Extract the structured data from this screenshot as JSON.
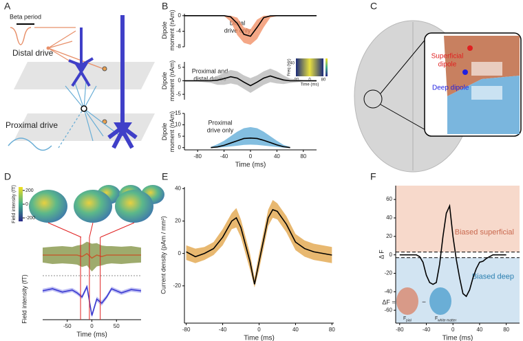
{
  "panel_labels": [
    "A",
    "B",
    "C",
    "D",
    "E",
    "F"
  ],
  "diagram_a": {
    "beta_period": "Beta period",
    "distal": "Distal drive",
    "proximal": "Proximal drive"
  },
  "diagram_c": {
    "superficial": [
      "Superficial",
      "dipole"
    ],
    "deep": "Deep dipole"
  },
  "colorbar_d": {
    "label": "Field intensity (fT)",
    "ticks": [
      200,
      0,
      -200
    ],
    "lim": [
      -250,
      250
    ]
  },
  "inset_b": {
    "ylabel": "Freq (Hz)",
    "xlabel": "Time (ms)",
    "xticks": [
      -80,
      0,
      80
    ],
    "yticks": [
      40
    ]
  },
  "formula_f": {
    "lhs": "ΔF =",
    "a": "F",
    "a_sub": "pial",
    "minus": "−",
    "b": "F",
    "b_sub": "white matter"
  },
  "chart_data": [
    {
      "type": "line",
      "xlim": [
        -100,
        100
      ],
      "ylim": [
        -8,
        0.5
      ],
      "yticks": [
        0,
        -4,
        -8
      ],
      "ylabel": [
        "Dipole",
        "moment (nAm)"
      ],
      "annotation": [
        "Distal",
        "drive only"
      ],
      "x": [
        -100,
        -80,
        -60,
        -40,
        -30,
        -20,
        -10,
        0,
        10,
        20,
        30,
        40,
        60,
        80,
        100
      ],
      "values": [
        0,
        0,
        0,
        0,
        -0.3,
        -2,
        -4.8,
        -5.3,
        -3,
        -0.5,
        -0.05,
        0,
        0,
        0,
        0
      ],
      "lower": [
        0,
        0,
        0,
        -0.1,
        -1.5,
        -5,
        -7,
        -7.5,
        -6,
        -3,
        -0.5,
        -0.1,
        0,
        0,
        0
      ],
      "upper": [
        0,
        0,
        0,
        0,
        0,
        -0.5,
        -3,
        -3.5,
        -1,
        0,
        0,
        0,
        0,
        0,
        0
      ],
      "color": "#000000",
      "band_color": "#f08a5d"
    },
    {
      "type": "line",
      "xlim": [
        -100,
        100
      ],
      "ylim": [
        -7,
        7
      ],
      "yticks": [
        5,
        0,
        -5
      ],
      "ylabel": [
        "Dipole",
        "moment (nAm)"
      ],
      "annotation": [
        "Proximal and",
        "distal drives"
      ],
      "x": [
        -100,
        -80,
        -60,
        -50,
        -40,
        -30,
        -20,
        -10,
        0,
        10,
        20,
        30,
        40,
        50,
        60,
        80,
        100
      ],
      "values": [
        0,
        0,
        0,
        0.2,
        0.8,
        1.5,
        1,
        -0.5,
        -1.8,
        -0.5,
        1,
        1.8,
        1,
        0.3,
        0,
        0,
        0
      ],
      "lower": [
        -0.3,
        -0.3,
        -0.8,
        -1.5,
        -1.5,
        -1,
        -1.5,
        -3,
        -4.5,
        -3,
        -1.5,
        -0.5,
        -1,
        -1.2,
        -0.8,
        -0.3,
        -0.3
      ],
      "upper": [
        0.3,
        0.3,
        0.8,
        1.8,
        3,
        4,
        3.5,
        2,
        1,
        2,
        3.5,
        4.5,
        3.5,
        2,
        0.8,
        0.3,
        0.3
      ],
      "color": "#000000",
      "band_color": "#b5b5b5"
    },
    {
      "type": "line",
      "xlim": [
        -100,
        100
      ],
      "ylim": [
        -1,
        15
      ],
      "yticks": [
        0,
        5,
        10,
        15
      ],
      "xticks": [
        -80,
        -40,
        0,
        40,
        80
      ],
      "xlabel": "Time (ms)",
      "ylabel": [
        "Dipole",
        "moment (nAm)"
      ],
      "annotation": [
        "Proximal",
        "drive only"
      ],
      "x": [
        -60,
        -50,
        -40,
        -30,
        -20,
        -10,
        0,
        10,
        20,
        30,
        40,
        50,
        60
      ],
      "values": [
        0,
        0.3,
        1,
        2,
        3,
        4,
        4.2,
        4,
        3.2,
        2.2,
        1.2,
        0.4,
        0
      ],
      "lower": [
        0,
        0,
        0.2,
        0.5,
        0.8,
        1.2,
        1.3,
        1.2,
        0.9,
        0.6,
        0.3,
        0,
        0
      ],
      "upper": [
        0.3,
        1.5,
        3,
        5,
        7,
        8.5,
        9,
        8.5,
        7,
        5,
        3,
        1.2,
        0.3
      ],
      "color": "#000000",
      "band_color": "#5aa8d6"
    },
    {
      "type": "line",
      "xlim": [
        -100,
        100
      ],
      "ylim": [
        -60,
        60
      ],
      "x": [
        -100,
        -80,
        -60,
        -40,
        -30,
        -20,
        -10,
        0,
        10,
        20,
        30,
        40,
        60,
        80,
        100
      ],
      "values": [
        0,
        0,
        0,
        0,
        0,
        -5,
        5,
        -10,
        0,
        -5,
        0,
        0,
        0,
        0,
        0
      ],
      "lower": [
        -25,
        -30,
        -28,
        -30,
        -32,
        -40,
        -35,
        -55,
        -38,
        -35,
        -30,
        -28,
        -30,
        -27,
        -25
      ],
      "upper": [
        25,
        28,
        30,
        27,
        32,
        35,
        45,
        38,
        40,
        32,
        30,
        30,
        28,
        30,
        25
      ],
      "color": "#c06030",
      "band_color": "#7d8f3c"
    },
    {
      "type": "line",
      "xlim": [
        -100,
        100
      ],
      "ylim": [
        -70,
        30
      ],
      "xticks": [
        -50,
        0,
        50
      ],
      "xlabel": "Time (ms)",
      "ylabel": [
        "Field intensity (fT)"
      ],
      "x": [
        -100,
        -80,
        -60,
        -40,
        -30,
        -20,
        -10,
        0,
        10,
        20,
        30,
        40,
        60,
        80,
        100
      ],
      "values": [
        0,
        5,
        -3,
        2,
        -5,
        -15,
        10,
        -60,
        -20,
        -30,
        -15,
        5,
        -5,
        3,
        0
      ],
      "lower": [
        -5,
        0,
        -8,
        -3,
        -10,
        -20,
        5,
        -66,
        -26,
        -36,
        -20,
        0,
        -10,
        -2,
        -5
      ],
      "upper": [
        5,
        10,
        2,
        7,
        0,
        -10,
        15,
        -54,
        -14,
        -24,
        -10,
        10,
        0,
        8,
        5
      ],
      "color": "#3a3ad0",
      "band_color": "#a8a8f0",
      "markers": [
        -23,
        -5,
        17
      ]
    },
    {
      "type": "line",
      "xlim": [
        -82,
        82
      ],
      "ylim": [
        -43,
        41
      ],
      "yticks": [
        -20,
        0,
        20,
        40
      ],
      "xticks": [
        -80,
        -40,
        0,
        40,
        80
      ],
      "xlabel": "Time (ms)",
      "ylabel": [
        "Current density (pAm / mm²)"
      ],
      "x": [
        -80,
        -70,
        -60,
        -50,
        -40,
        -30,
        -25,
        -20,
        -10,
        -5,
        0,
        10,
        15,
        20,
        30,
        40,
        50,
        60,
        70,
        80
      ],
      "values": [
        1,
        -2,
        0,
        3,
        10,
        20,
        22,
        16,
        -5,
        -19,
        -5,
        22,
        27,
        26,
        18,
        7,
        3,
        1,
        0,
        -1
      ],
      "lower": [
        -4,
        -6,
        -4,
        -1,
        5,
        15,
        16,
        10,
        -10,
        -21,
        -10,
        17,
        22,
        21,
        13,
        2,
        -2,
        -4,
        -5,
        -6
      ],
      "upper": [
        5,
        3,
        4,
        7,
        15,
        25,
        28,
        21,
        0,
        -15,
        0,
        27,
        33,
        31,
        23,
        12,
        8,
        6,
        5,
        4
      ],
      "color": "#000000",
      "band_color": "#e0a040"
    },
    {
      "type": "line",
      "xlim": [
        -86,
        100
      ],
      "ylim": [
        -74,
        75
      ],
      "yticks": [
        -60,
        -40,
        -20,
        0,
        20,
        40,
        60
      ],
      "xticks": [
        -80,
        -40,
        0,
        40,
        80
      ],
      "xlabel": "Time (ms)",
      "ylabel": [
        "Δ F"
      ],
      "x": [
        -80,
        -60,
        -55,
        -50,
        -45,
        -40,
        -35,
        -30,
        -25,
        -20,
        -15,
        -10,
        -5,
        0,
        5,
        10,
        15,
        20,
        25,
        30,
        35,
        40,
        45,
        50,
        55,
        60,
        80
      ],
      "values": [
        0,
        0,
        0,
        -2,
        -8,
        -22,
        -30,
        -32,
        -30,
        -10,
        20,
        45,
        53,
        20,
        -5,
        -25,
        -42,
        -45,
        -38,
        -25,
        -15,
        -8,
        -7,
        -4,
        -2,
        0,
        0
      ],
      "color": "#000000",
      "thresholds": [
        3,
        -3
      ],
      "shading": [
        {
          "label": "Biased superficial",
          "color": "#f7d9cb",
          "text_color": "#c9694f",
          "from": 3,
          "to": 75
        },
        {
          "label": "Biased deep",
          "color": "#d2e4f2",
          "text_color": "#2a7fb0",
          "from": -3,
          "to": -74
        }
      ]
    }
  ]
}
